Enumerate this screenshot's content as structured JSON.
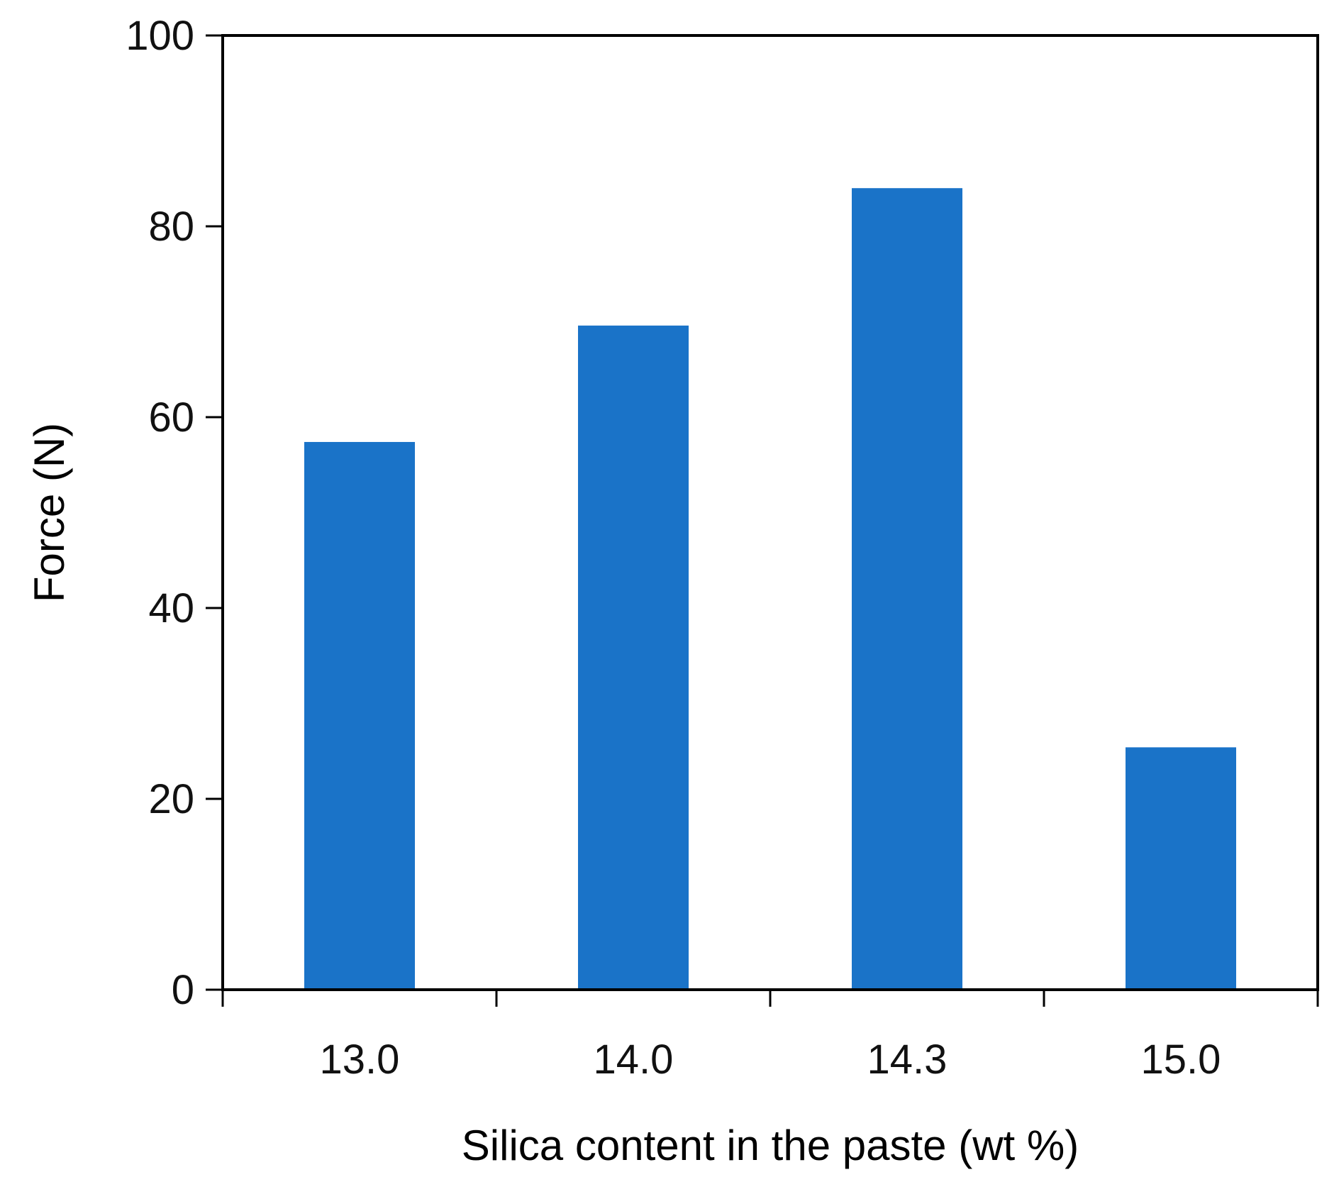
{
  "chart_data": {
    "type": "bar",
    "title": "",
    "xlabel": "Silica content in the paste (wt %)",
    "ylabel": "Force (N)",
    "categories": [
      "13.0",
      "14.0",
      "14.3",
      "15.0"
    ],
    "values": [
      57.4,
      69.6,
      84.0,
      25.4
    ],
    "ylim": [
      0,
      100
    ],
    "yticks": [
      "0",
      "20",
      "40",
      "60",
      "80",
      "100"
    ],
    "grid": false,
    "legend": "none",
    "bar_color": "#1a73c8",
    "axis_color": "#000000"
  }
}
